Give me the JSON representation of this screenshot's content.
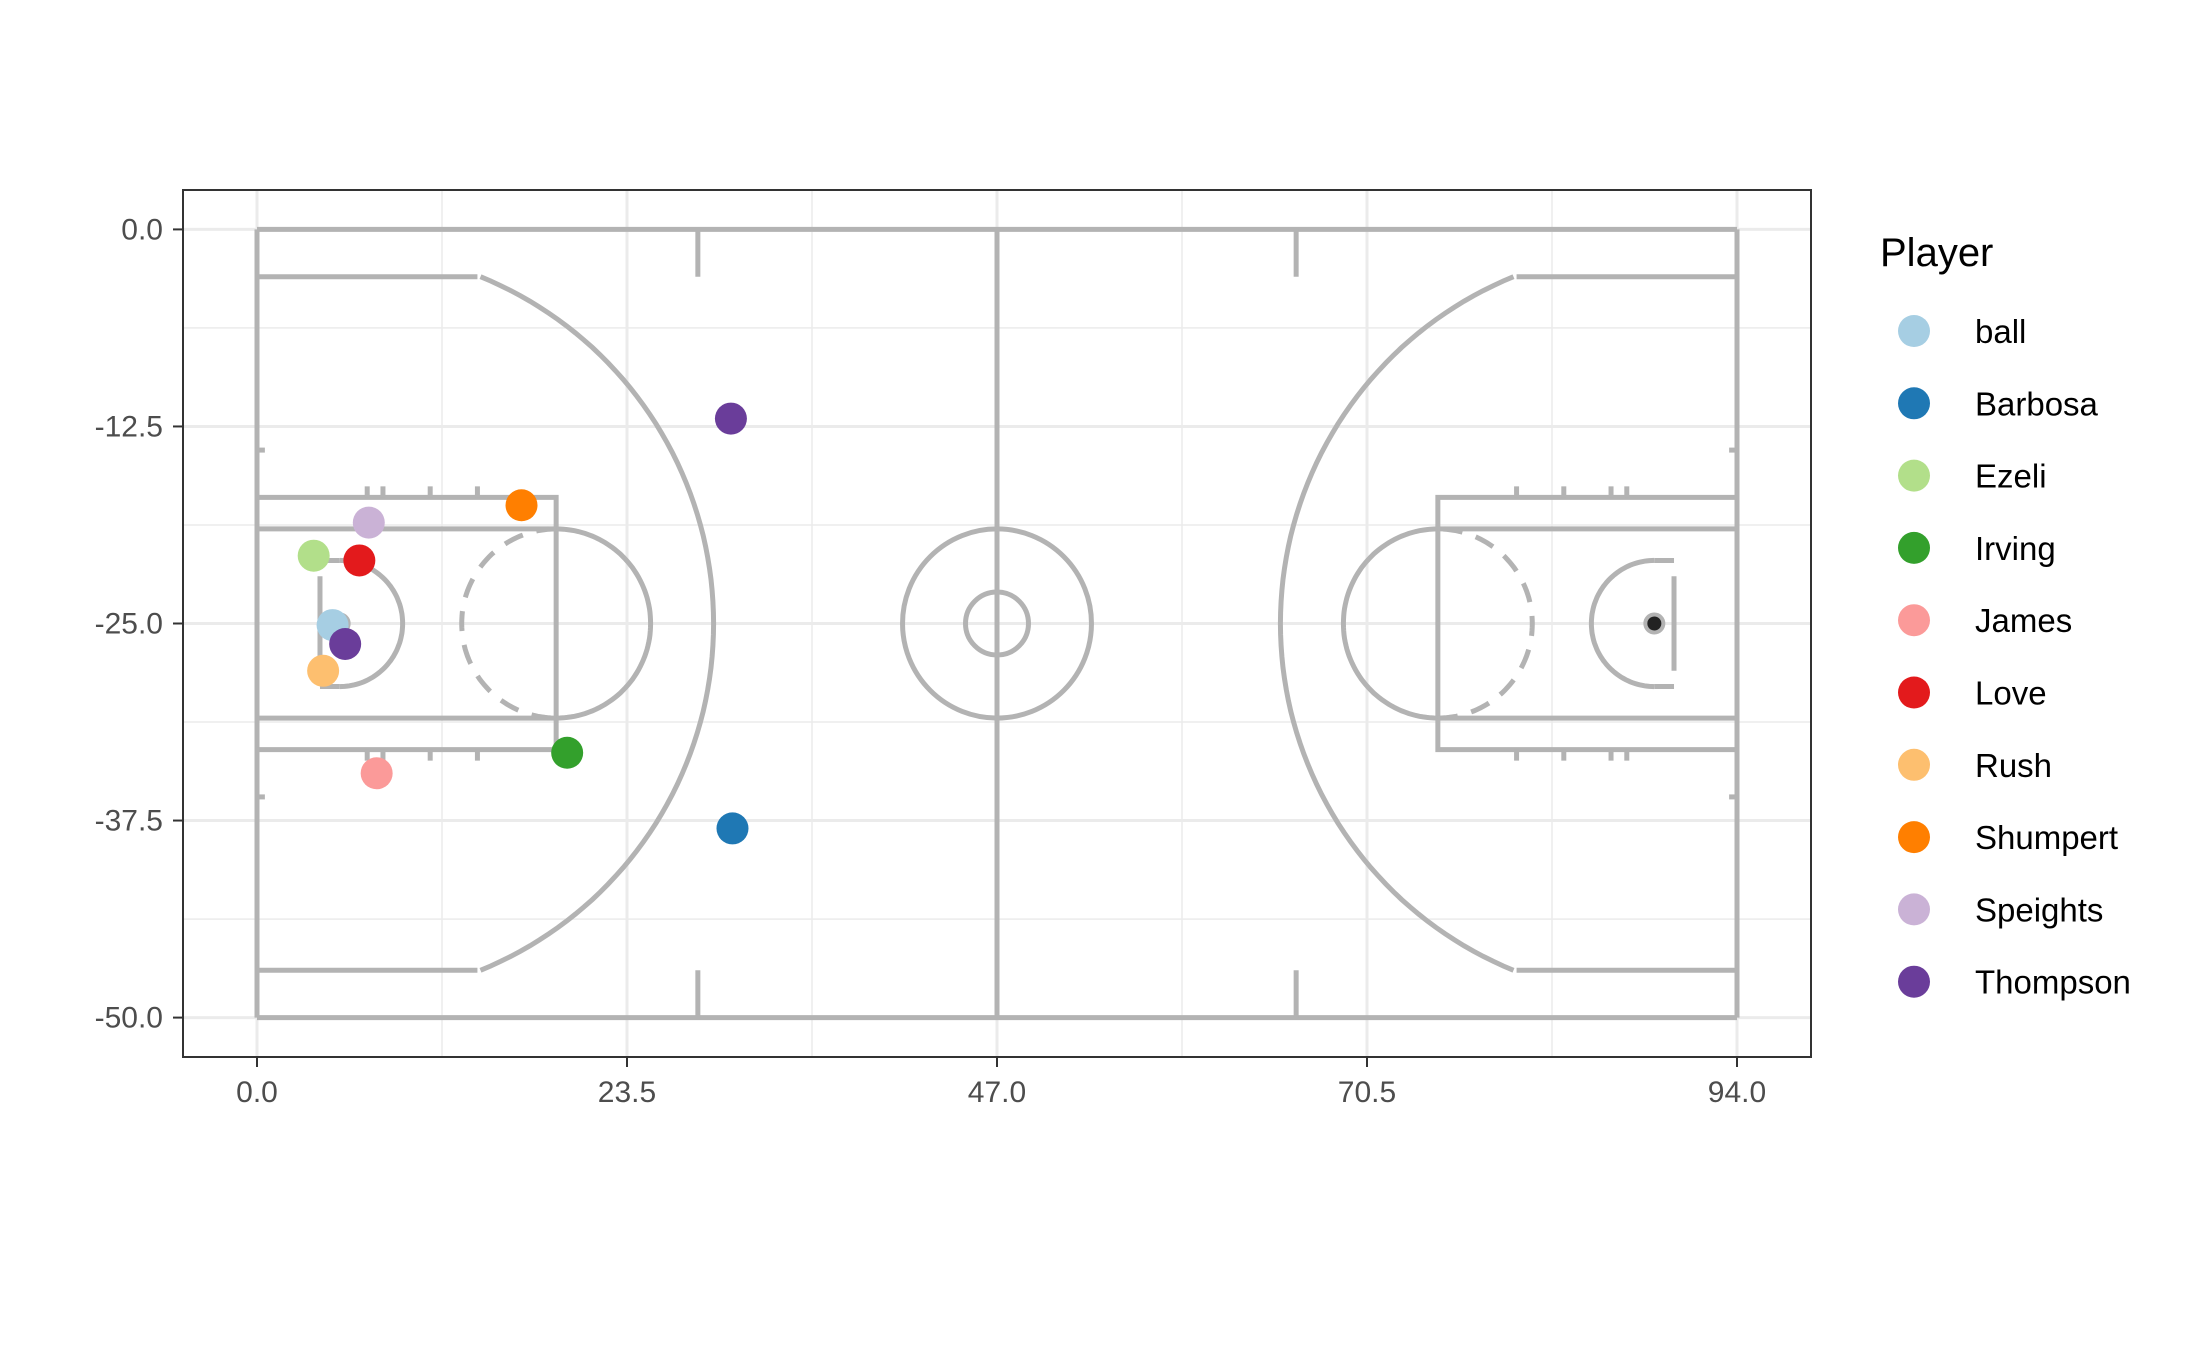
{
  "chart_data": {
    "type": "scatter",
    "title": "",
    "xlabel": "",
    "ylabel": "",
    "xlim": [
      -4.7,
      98.7
    ],
    "ylim": [
      -52.5,
      2.5
    ],
    "x_ticks": [
      0.0,
      23.5,
      47.0,
      70.5,
      94.0
    ],
    "x_tick_labels": [
      "0.0",
      "23.5",
      "47.0",
      "70.5",
      "94.0"
    ],
    "y_ticks": [
      0.0,
      -12.5,
      -25.0,
      -37.5,
      -50.0
    ],
    "y_tick_labels": [
      "0.0",
      "-12.5",
      "-25.0",
      "-37.5",
      "-50.0"
    ],
    "grid": true,
    "background": "court",
    "court_color": "#b3b3b3",
    "legend": {
      "title": "Player",
      "position": "right",
      "entries": [
        {
          "label": "ball",
          "color": "#a6cee3"
        },
        {
          "label": "Barbosa",
          "color": "#1f78b4"
        },
        {
          "label": "Ezeli",
          "color": "#b2df8a"
        },
        {
          "label": "Irving",
          "color": "#33a02c"
        },
        {
          "label": "James",
          "color": "#fb9a99"
        },
        {
          "label": "Love",
          "color": "#e31a1c"
        },
        {
          "label": "Rush",
          "color": "#fdbf6f"
        },
        {
          "label": "Shumpert",
          "color": "#ff7f00"
        },
        {
          "label": "Speights",
          "color": "#cab2d6"
        },
        {
          "label": "Thompson",
          "color": "#6a3d9a"
        }
      ]
    },
    "series": [
      {
        "name": "Thompson",
        "color": "#6a3d9a",
        "x": 30.1,
        "y": -12.0
      },
      {
        "name": "Shumpert",
        "color": "#ff7f00",
        "x": 16.8,
        "y": -17.5
      },
      {
        "name": "Speights",
        "color": "#cab2d6",
        "x": 7.1,
        "y": -18.6
      },
      {
        "name": "Ezeli",
        "color": "#b2df8a",
        "x": 3.6,
        "y": -20.7
      },
      {
        "name": "Love",
        "color": "#e31a1c",
        "x": 6.5,
        "y": -21.0
      },
      {
        "name": "ball",
        "color": "#a6cee3",
        "x": 4.8,
        "y": -25.1
      },
      {
        "name": "Thompson",
        "color": "#6a3d9a",
        "x": 5.6,
        "y": -26.3
      },
      {
        "name": "Rush",
        "color": "#fdbf6f",
        "x": 4.2,
        "y": -28.0
      },
      {
        "name": "Irving",
        "color": "#33a02c",
        "x": 19.7,
        "y": -33.2
      },
      {
        "name": "James",
        "color": "#fb9a99",
        "x": 7.6,
        "y": -34.5
      },
      {
        "name": "Barbosa",
        "color": "#1f78b4",
        "x": 30.2,
        "y": -38.0
      }
    ]
  }
}
